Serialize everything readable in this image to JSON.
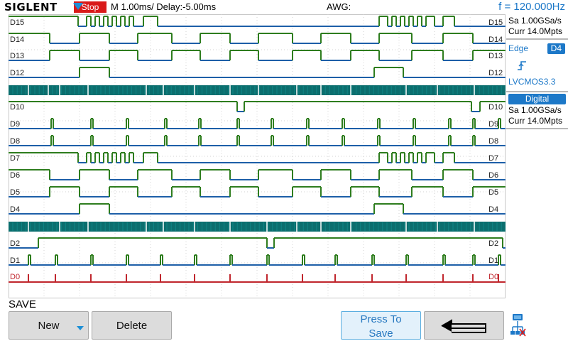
{
  "header": {
    "brand": "SIGLENT",
    "run_state": "Stop",
    "timebase": "M 1.00ms/ Delay:-5.00ms",
    "awg_label": "AWG:",
    "frequency": "f = 120.000Hz"
  },
  "channels_top": [
    "D15",
    "D14",
    "D13",
    "D12"
  ],
  "channels_mid": [
    "D10",
    "D9",
    "D8",
    "D7",
    "D6",
    "D5",
    "D4"
  ],
  "channels_bottom": [
    "D2",
    "D1",
    "D0"
  ],
  "right_panel": {
    "sample_rate": "Sa 1.00GSa/s",
    "curr_points": "Curr 14.0Mpts",
    "trigger_type": "Edge",
    "trigger_source": "D4",
    "trigger_level_std": "LVCMOS3.3",
    "digital_title": "Digital",
    "digital_sample_rate": "Sa 1.00GSa/s",
    "digital_curr_points": "Curr 14.0Mpts"
  },
  "menu": {
    "title": "SAVE",
    "softkeys": {
      "new": "New",
      "delete": "Delete",
      "press_to_save_1": "Press To",
      "press_to_save_2": "Save"
    }
  },
  "icons": {
    "trigger_marker": "trigger-position-marker-icon",
    "edge": "rising-edge-icon",
    "back": "return-arrow-icon",
    "network": "network-icon",
    "menu_arrow": "down-arrow-icon"
  },
  "colors": {
    "accent": "#1c78c8",
    "trace_high": "#2e7d1e",
    "trace_low": "#1d5fa8",
    "trace_d0": "#c0262d",
    "bus_fill": "#0b6e6e",
    "stop": "#d91a1a"
  }
}
